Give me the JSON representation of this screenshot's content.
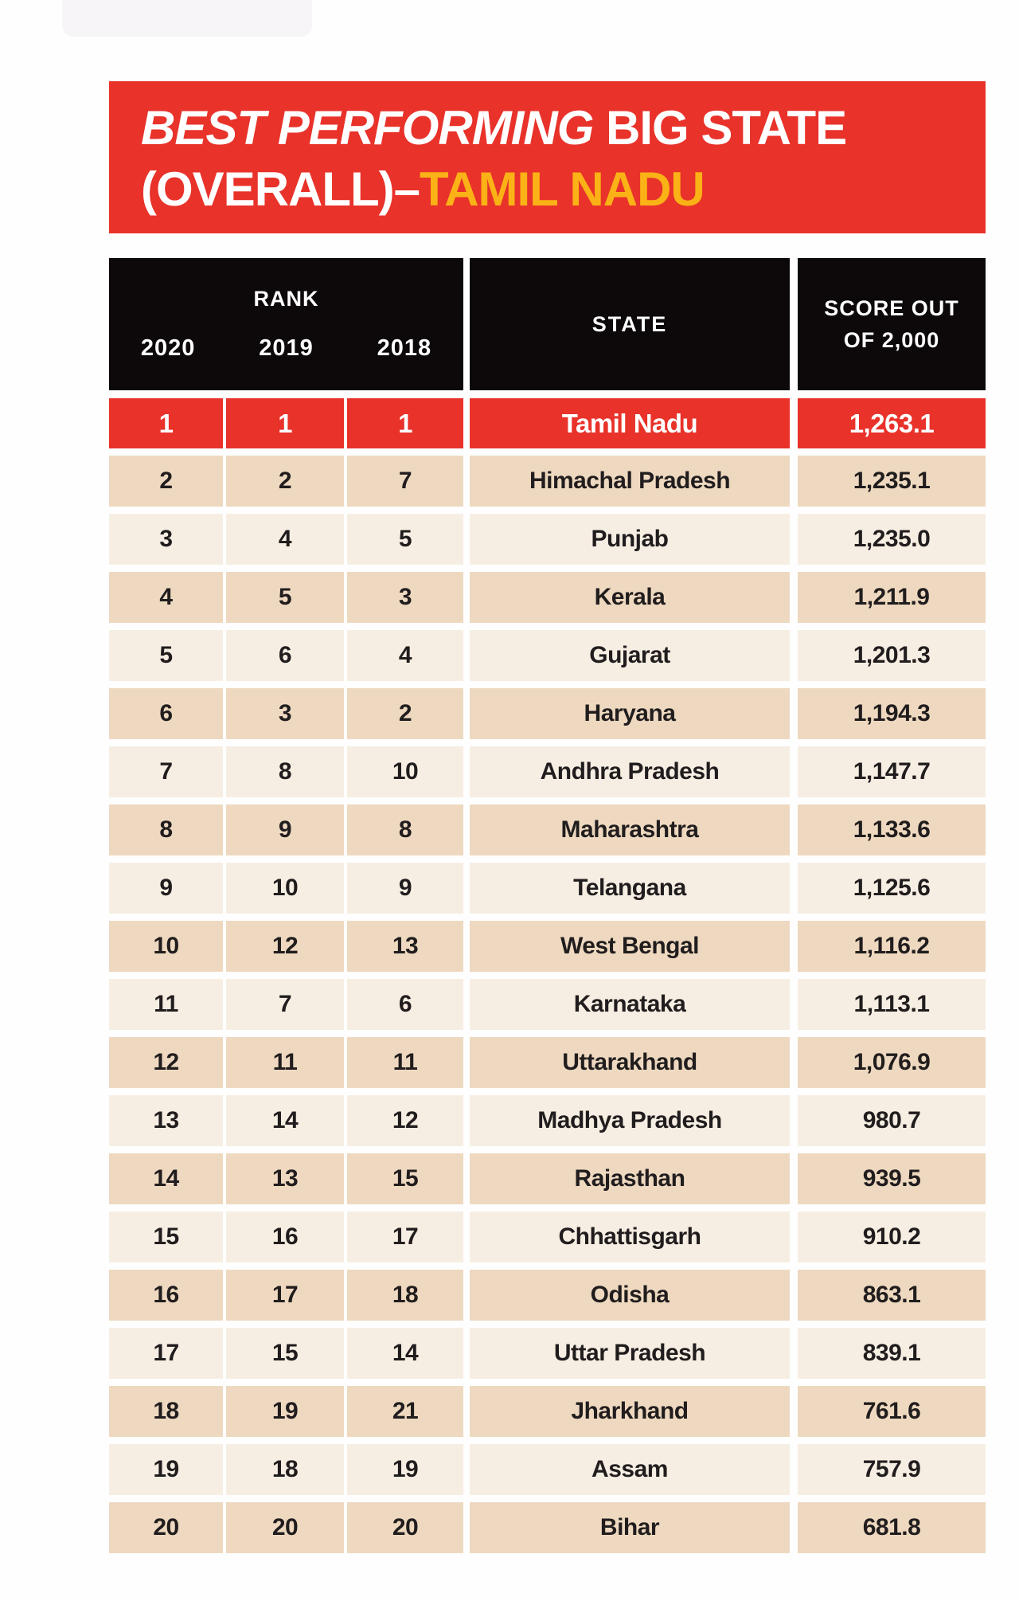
{
  "page": {
    "bg": "#fefefe"
  },
  "banner": {
    "bg": "#e8322a",
    "line1_italic": "BEST PERFORMING",
    "line1_rest": " BIG STATE",
    "line2_white": "(OVERALL)–",
    "line2_accent": "TAMIL NADU",
    "accent_color": "#fbb216"
  },
  "table": {
    "header": {
      "bg": "#0d090a",
      "rank": "RANK",
      "years": [
        "2020",
        "2019",
        "2018"
      ],
      "state": "STATE",
      "score_line1": "SCORE OUT",
      "score_line2": "OF 2,000"
    },
    "row_dark": "#eed9c0",
    "row_light": "#f7eee3",
    "highlight_bg": "#e8322a",
    "text_color": "#211d1e"
  },
  "chart_data": {
    "type": "table",
    "title": "BEST PERFORMING BIG STATE (OVERALL)–TAMIL NADU",
    "columns": [
      "Rank 2020",
      "Rank 2019",
      "Rank 2018",
      "State",
      "Score out of 2,000"
    ],
    "highlight_row_index": 0,
    "rows": [
      [
        "1",
        "1",
        "1",
        "Tamil Nadu",
        "1,263.1"
      ],
      [
        "2",
        "2",
        "7",
        "Himachal Pradesh",
        "1,235.1"
      ],
      [
        "3",
        "4",
        "5",
        "Punjab",
        "1,235.0"
      ],
      [
        "4",
        "5",
        "3",
        "Kerala",
        "1,211.9"
      ],
      [
        "5",
        "6",
        "4",
        "Gujarat",
        "1,201.3"
      ],
      [
        "6",
        "3",
        "2",
        "Haryana",
        "1,194.3"
      ],
      [
        "7",
        "8",
        "10",
        "Andhra Pradesh",
        "1,147.7"
      ],
      [
        "8",
        "9",
        "8",
        "Maharashtra",
        "1,133.6"
      ],
      [
        "9",
        "10",
        "9",
        "Telangana",
        "1,125.6"
      ],
      [
        "10",
        "12",
        "13",
        "West Bengal",
        "1,116.2"
      ],
      [
        "11",
        "7",
        "6",
        "Karnataka",
        "1,113.1"
      ],
      [
        "12",
        "11",
        "11",
        "Uttarakhand",
        "1,076.9"
      ],
      [
        "13",
        "14",
        "12",
        "Madhya Pradesh",
        "980.7"
      ],
      [
        "14",
        "13",
        "15",
        "Rajasthan",
        "939.5"
      ],
      [
        "15",
        "16",
        "17",
        "Chhattisgarh",
        "910.2"
      ],
      [
        "16",
        "17",
        "18",
        "Odisha",
        "863.1"
      ],
      [
        "17",
        "15",
        "14",
        "Uttar Pradesh",
        "839.1"
      ],
      [
        "18",
        "19",
        "21",
        "Jharkhand",
        "761.6"
      ],
      [
        "19",
        "18",
        "19",
        "Assam",
        "757.9"
      ],
      [
        "20",
        "20",
        "20",
        "Bihar",
        "681.8"
      ]
    ]
  }
}
